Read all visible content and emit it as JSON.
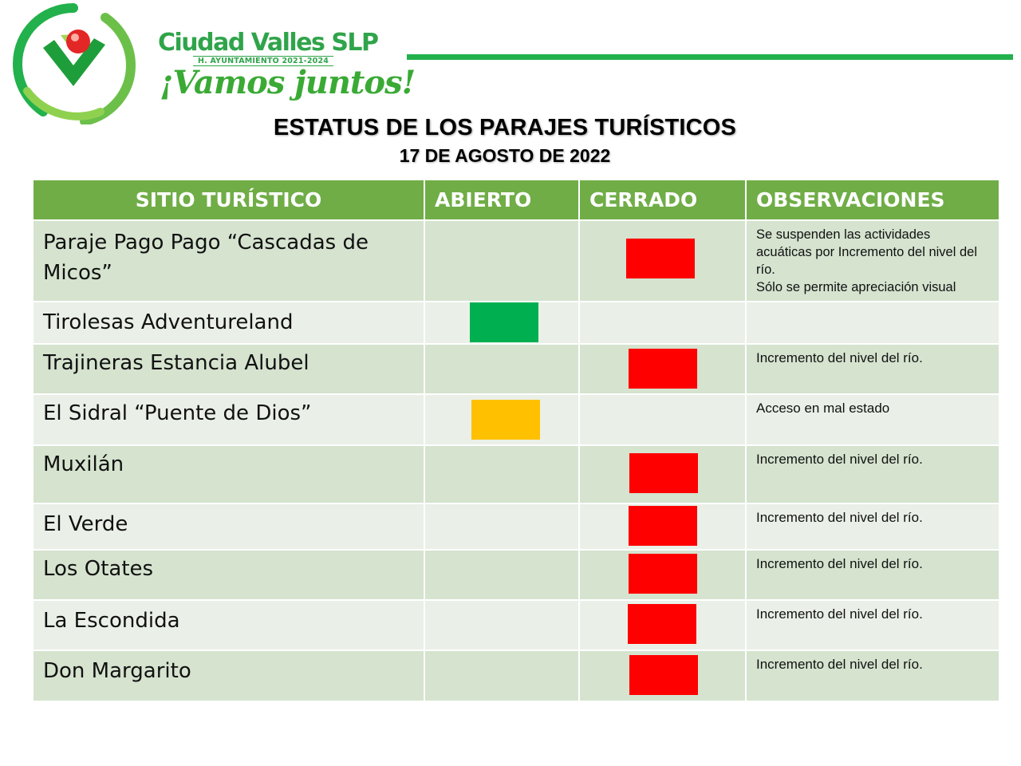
{
  "branding": {
    "name": "Ciudad Valles SLP",
    "subtitle": "H. AYUNTAMIENTO 2021-2024",
    "slogan": "¡Vamos juntos!"
  },
  "title": "ESTATUS DE LOS PARAJES TURÍSTICOS",
  "date": "17 DE AGOSTO DE 2022",
  "colors": {
    "header": "#70ad47",
    "open": "#00b050",
    "partial": "#ffc000",
    "closed": "#ff0000",
    "rule": "#22b14c"
  },
  "columns": [
    "SITIO TURÍSTICO",
    "ABIERTO",
    "CERRADO",
    "OBSERVACIONES"
  ],
  "rows": [
    {
      "site": "Paraje Pago Pago “Cascadas de Micos”",
      "status": "cerrado",
      "observation": "Se suspenden las actividades acuáticas por Incremento del nivel del río.\nSólo se permite apreciación visual"
    },
    {
      "site": "Tirolesas Adventureland",
      "status": "abierto",
      "observation": ""
    },
    {
      "site": "Trajineras Estancia Alubel",
      "status": "cerrado",
      "observation": "Incremento del nivel del río."
    },
    {
      "site": "El Sidral “Puente de Dios”",
      "status": "abierto-precaucion",
      "observation": "Acceso en mal estado"
    },
    {
      "site": "Muxilán",
      "status": "cerrado",
      "observation": "Incremento del nivel del río."
    },
    {
      "site": "El Verde",
      "status": "cerrado",
      "observation": "Incremento del nivel del río."
    },
    {
      "site": "Los Otates",
      "status": "cerrado",
      "observation": "Incremento del nivel del río."
    },
    {
      "site": "La Escondida",
      "status": "cerrado",
      "observation": "Incremento del nivel del río."
    },
    {
      "site": "Don Margarito",
      "status": "cerrado",
      "observation": "Incremento del nivel del río."
    }
  ]
}
